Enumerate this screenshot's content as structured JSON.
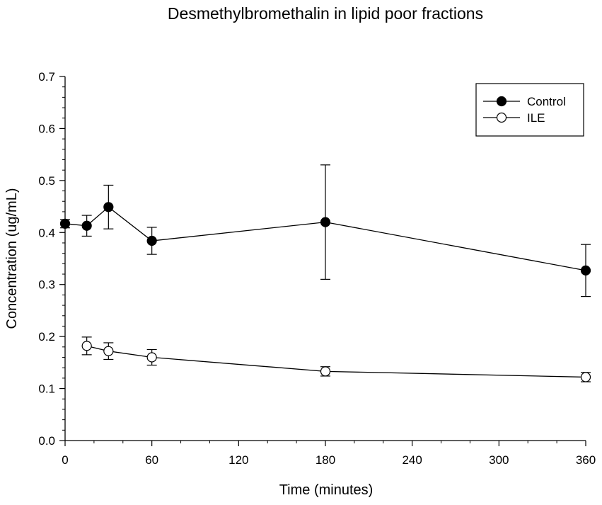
{
  "chart_data": {
    "type": "line",
    "title": "Desmethylbromethalin in lipid poor fractions",
    "xlabel": "Time (minutes)",
    "ylabel": "Concentration (ug/mL)",
    "xlim": [
      0,
      360
    ],
    "ylim": [
      0,
      0.7
    ],
    "xticks": [
      0,
      60,
      120,
      180,
      240,
      300,
      360
    ],
    "yticks": [
      0.0,
      0.1,
      0.2,
      0.3,
      0.4,
      0.5,
      0.6,
      0.7
    ],
    "x_tick_labels": [
      "0",
      "60",
      "120",
      "180",
      "240",
      "300",
      "360"
    ],
    "y_tick_labels": [
      "0.0",
      "0.1",
      "0.2",
      "0.3",
      "0.4",
      "0.5",
      "0.6",
      "0.7"
    ],
    "grid": false,
    "legend_position": "top-right",
    "series": [
      {
        "name": "Control",
        "marker": "filled-circle",
        "x": [
          0,
          15,
          30,
          60,
          180,
          360
        ],
        "y": [
          0.417,
          0.413,
          0.449,
          0.384,
          0.42,
          0.327
        ],
        "err": [
          0.008,
          0.02,
          0.042,
          0.026,
          0.11,
          0.05
        ]
      },
      {
        "name": "ILE",
        "marker": "open-circle",
        "x": [
          15,
          30,
          60,
          180,
          360
        ],
        "y": [
          0.182,
          0.172,
          0.16,
          0.133,
          0.122
        ],
        "err": [
          0.017,
          0.016,
          0.015,
          0.009,
          0.009
        ]
      }
    ]
  }
}
